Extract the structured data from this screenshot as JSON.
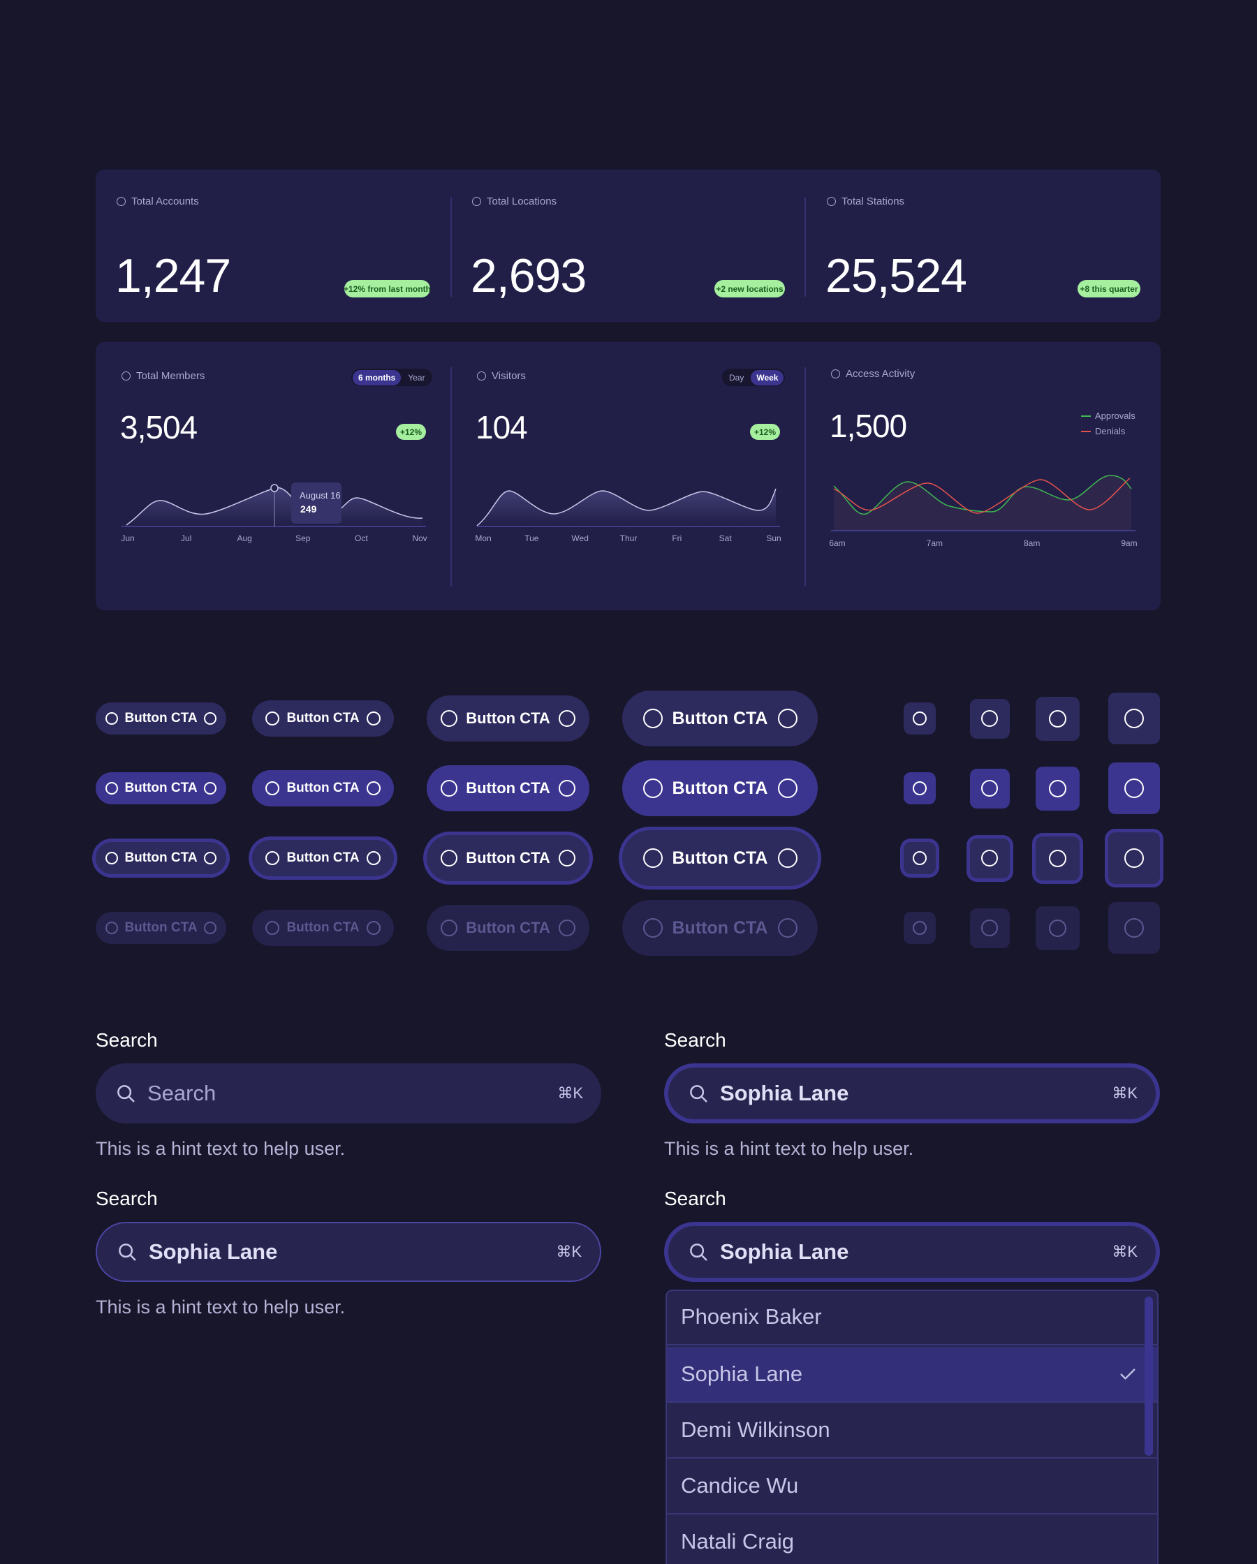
{
  "stats": [
    {
      "label": "Total Accounts",
      "value": "1,247",
      "badge": "+12% from last month"
    },
    {
      "label": "Total Locations",
      "value": "2,693",
      "badge": "+2 new locations"
    },
    {
      "label": "Total Stations",
      "value": "25,524",
      "badge": "+8 this quarter"
    }
  ],
  "cards": [
    {
      "label": "Total Members",
      "toggle": [
        "6 months",
        "Year"
      ],
      "value": "3,504",
      "badge": "+12%",
      "x_labels": [
        "Jun",
        "Jul",
        "Aug",
        "Sep",
        "Oct",
        "Nov"
      ],
      "tooltip": {
        "date": "August 16",
        "value": "249"
      }
    },
    {
      "label": "Visitors",
      "toggle": [
        "Day",
        "Week"
      ],
      "value": "104",
      "badge": "+12%",
      "x_labels": [
        "Mon",
        "Tue",
        "Wed",
        "Thur",
        "Fri",
        "Sat",
        "Sun"
      ]
    },
    {
      "label": "Access Activity",
      "value": "1,500",
      "legend": [
        "Approvals",
        "Denials"
      ],
      "x_labels": [
        "6am",
        "7am",
        "8am",
        "9am"
      ]
    }
  ],
  "buttons": {
    "label": "Button CTA"
  },
  "search": {
    "fields": [
      {
        "label": "Search",
        "placeholder": "Search",
        "shortcut": "⌘K",
        "hint": "This is a hint text to help user."
      },
      {
        "label": "Search",
        "value": "Sophia Lane",
        "shortcut": "⌘K",
        "hint": "This is a hint text to help user."
      },
      {
        "label": "Search",
        "value": "Sophia Lane",
        "shortcut": "⌘K",
        "hint": "This is a hint text to help user."
      },
      {
        "label": "Search",
        "value": "Sophia Lane",
        "shortcut": "⌘K"
      }
    ],
    "options": [
      "Phoenix Baker",
      "Sophia Lane",
      "Demi Wilkinson",
      "Candice Wu",
      "Natali Craig"
    ]
  }
}
